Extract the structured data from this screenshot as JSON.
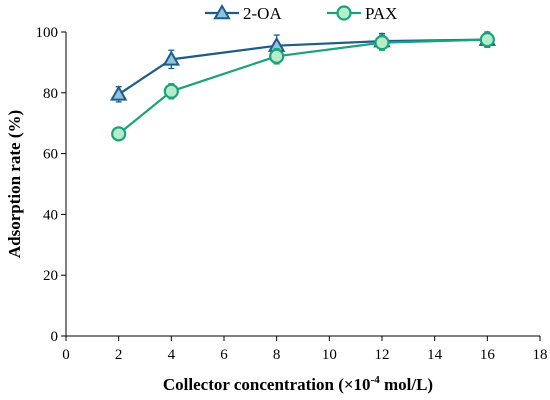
{
  "chart_data": {
    "type": "line",
    "xlabel": "Collector concentration (×10",
    "xlabel_exp": "-4",
    "xlabel_unit": " mol/L)",
    "ylabel": "Adsorption rate (%)",
    "xlim": [
      0,
      18
    ],
    "ylim": [
      0,
      100
    ],
    "xticks": [
      0,
      2,
      4,
      6,
      8,
      10,
      12,
      14,
      16,
      18
    ],
    "yticks": [
      0,
      20,
      40,
      60,
      80,
      100
    ],
    "grid": false,
    "legend_position": "top",
    "series": [
      {
        "name": "2-OA",
        "marker": "triangle",
        "color": "#1f5c8a",
        "fill": "#8ec5dc",
        "x": [
          2,
          4,
          8,
          12,
          16
        ],
        "y": [
          79.5,
          91,
          95.5,
          97,
          97.5
        ],
        "err": [
          2.5,
          3,
          3.5,
          2.5,
          2.5
        ]
      },
      {
        "name": "PAX",
        "marker": "circle",
        "color": "#1aa37a",
        "fill": "#b6ecc9",
        "x": [
          2,
          4,
          8,
          12,
          16
        ],
        "y": [
          66.5,
          80.5,
          92,
          96.5,
          97.5
        ],
        "err": [
          2,
          2.5,
          2.5,
          2.5,
          2
        ]
      }
    ]
  }
}
